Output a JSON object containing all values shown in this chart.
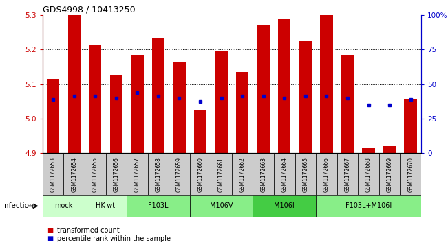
{
  "title": "GDS4998 / 10413250",
  "samples": [
    "GSM1172653",
    "GSM1172654",
    "GSM1172655",
    "GSM1172656",
    "GSM1172657",
    "GSM1172658",
    "GSM1172659",
    "GSM1172660",
    "GSM1172661",
    "GSM1172662",
    "GSM1172663",
    "GSM1172664",
    "GSM1172665",
    "GSM1172666",
    "GSM1172667",
    "GSM1172668",
    "GSM1172669",
    "GSM1172670"
  ],
  "bar_tops": [
    5.115,
    5.3,
    5.215,
    5.125,
    5.185,
    5.235,
    5.165,
    5.025,
    5.195,
    5.135,
    5.27,
    5.29,
    5.225,
    5.3,
    5.185,
    4.915,
    4.92,
    5.055
  ],
  "blue_y": [
    5.055,
    5.065,
    5.065,
    5.06,
    5.075,
    5.065,
    5.06,
    5.05,
    5.06,
    5.065,
    5.065,
    5.06,
    5.065,
    5.065,
    5.06,
    5.04,
    5.04,
    5.055
  ],
  "ymin": 4.9,
  "ymax": 5.3,
  "yticks_left": [
    4.9,
    5.0,
    5.1,
    5.2,
    5.3
  ],
  "right_yticks_pct": [
    0,
    25,
    50,
    75,
    100
  ],
  "right_yticks_labels": [
    "0",
    "25",
    "50",
    "75",
    "100%"
  ],
  "groups": [
    {
      "label": "mock",
      "start": 0,
      "end": 1,
      "color": "#ccffcc"
    },
    {
      "label": "HK-wt",
      "start": 2,
      "end": 3,
      "color": "#ccffcc"
    },
    {
      "label": "F103L",
      "start": 4,
      "end": 6,
      "color": "#88ee88"
    },
    {
      "label": "M106V",
      "start": 7,
      "end": 9,
      "color": "#88ee88"
    },
    {
      "label": "M106I",
      "start": 10,
      "end": 12,
      "color": "#44cc44"
    },
    {
      "label": "F103L+M106I",
      "start": 13,
      "end": 17,
      "color": "#88ee88"
    }
  ],
  "bar_color": "#cc0000",
  "marker_color": "#0000cc",
  "left_axis_color": "#cc0000",
  "right_axis_color": "#0000cc",
  "sample_bg_color": "#cccccc",
  "legend_items": [
    {
      "label": "transformed count",
      "color": "#cc0000"
    },
    {
      "label": "percentile rank within the sample",
      "color": "#0000cc"
    }
  ]
}
